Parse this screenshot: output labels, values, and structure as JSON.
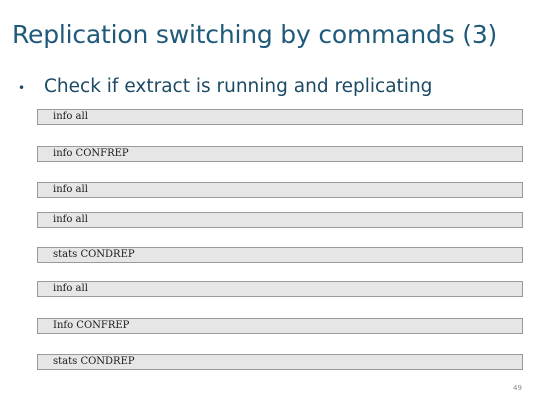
{
  "slide": {
    "title": "Replication switching by commands (3)",
    "bullet": "Check if extract is running and replicating",
    "commands": [
      "info all",
      "info CONFREP",
      "info all",
      "info all",
      "stats CONDREP",
      "info all",
      "Info CONFREP",
      "stats CONDREP"
    ],
    "page_number": "49"
  }
}
